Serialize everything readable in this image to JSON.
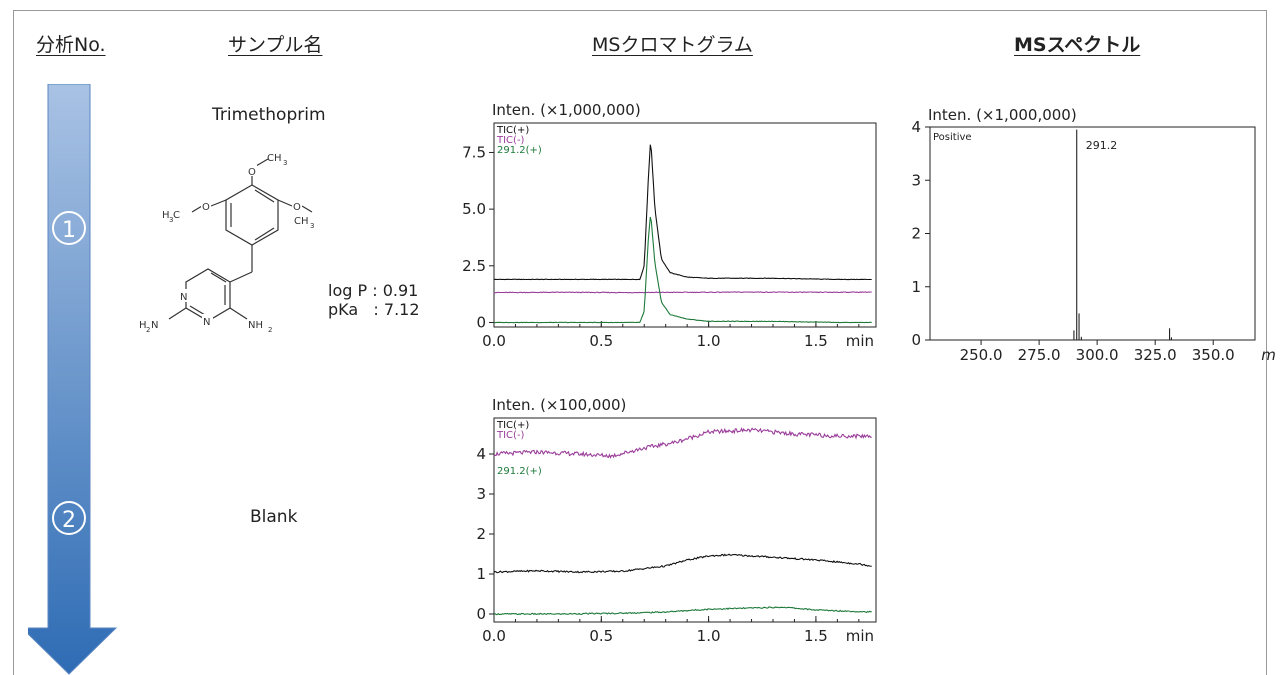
{
  "headers": {
    "analysis_no": "分析No.",
    "sample_name": "サンプル名",
    "ms_chromatogram": "MSクロマトグラム",
    "ms_spectrum": "MSスペクトル"
  },
  "arrow": {
    "steps": [
      "①",
      "②"
    ],
    "color_top": "#9db9df",
    "color_bottom": "#2f6db5"
  },
  "samples": [
    {
      "name": "Trimethoprim",
      "log_p": "log P : 0.91",
      "pka": "pKa   : 7.12",
      "structure_labels": {
        "ch3_top": "CH",
        "h3c_left": "H",
        "ch3_right": "CH",
        "o": "O",
        "n": "N",
        "h2n": "H",
        "nh2": "NH",
        "sub2": "2",
        "sub3": "3"
      }
    },
    {
      "name": "Blank"
    }
  ],
  "colors": {
    "tic_pos": "#111111",
    "tic_neg": "#9a3d9a",
    "sim_291": "#1e7a3a"
  },
  "chart_data": [
    {
      "type": "line",
      "title": "Inten. (×1,000,000)",
      "xlabel": "min",
      "xlim": [
        0.0,
        1.78
      ],
      "ylim": [
        -0.2,
        8.8
      ],
      "x_ticks": [
        "0.0",
        "0.5",
        "1.0",
        "1.5"
      ],
      "y_ticks": [
        "0",
        "2.5",
        "5.0",
        "7.5"
      ],
      "legend": [
        "TIC(+)",
        "TIC(-)",
        "291.2(+)"
      ],
      "series": [
        {
          "name": "TIC(+)",
          "x": [
            0.0,
            0.68,
            0.7,
            0.72,
            0.73,
            0.75,
            0.78,
            0.82,
            0.9,
            1.0,
            1.3,
            1.6,
            1.76
          ],
          "y": [
            1.9,
            1.9,
            2.5,
            6.5,
            8.1,
            5.0,
            2.8,
            2.2,
            2.0,
            1.95,
            1.95,
            1.9,
            1.9
          ]
        },
        {
          "name": "TIC(-)",
          "x": [
            0.0,
            0.3,
            0.6,
            0.9,
            1.2,
            1.5,
            1.76
          ],
          "y": [
            1.32,
            1.33,
            1.32,
            1.33,
            1.34,
            1.33,
            1.34
          ]
        },
        {
          "name": "291.2(+)",
          "x": [
            0.0,
            0.68,
            0.7,
            0.72,
            0.73,
            0.75,
            0.78,
            0.82,
            0.9,
            1.0,
            1.3,
            1.6,
            1.76
          ],
          "y": [
            0.0,
            0.0,
            0.5,
            3.8,
            4.8,
            2.6,
            0.9,
            0.35,
            0.15,
            0.05,
            0.05,
            0.0,
            0.0
          ]
        }
      ]
    },
    {
      "type": "line",
      "title": "Inten. (×100,000)",
      "xlabel": "min",
      "xlim": [
        0.0,
        1.78
      ],
      "ylim": [
        -0.2,
        4.9
      ],
      "x_ticks": [
        "0.0",
        "0.5",
        "1.0",
        "1.5"
      ],
      "y_ticks": [
        "0",
        "1",
        "2",
        "3",
        "4"
      ],
      "legend": [
        "TIC(+)",
        "TIC(-)",
        "291.2(+)"
      ],
      "series": [
        {
          "name": "TIC(+)",
          "x": [
            0.0,
            0.2,
            0.4,
            0.6,
            0.8,
            0.9,
            1.0,
            1.1,
            1.3,
            1.5,
            1.7,
            1.76
          ],
          "y": [
            1.05,
            1.08,
            1.05,
            1.07,
            1.2,
            1.35,
            1.45,
            1.48,
            1.42,
            1.35,
            1.25,
            1.2
          ]
        },
        {
          "name": "TIC(-)",
          "x": [
            0.0,
            0.2,
            0.4,
            0.55,
            0.7,
            0.85,
            1.0,
            1.2,
            1.4,
            1.6,
            1.76
          ],
          "y": [
            4.0,
            4.05,
            4.0,
            3.95,
            4.15,
            4.3,
            4.55,
            4.6,
            4.5,
            4.45,
            4.45
          ]
        },
        {
          "name": "291.2(+)",
          "x": [
            0.0,
            0.3,
            0.6,
            0.8,
            1.0,
            1.2,
            1.35,
            1.5,
            1.76
          ],
          "y": [
            0.0,
            0.0,
            0.02,
            0.05,
            0.12,
            0.15,
            0.17,
            0.1,
            0.05
          ]
        }
      ]
    },
    {
      "type": "bar",
      "title": "Inten. (×1,000,000)",
      "xlabel": "m/z",
      "xlim": [
        228,
        368
      ],
      "ylim": [
        0,
        4
      ],
      "x_ticks": [
        "250.0",
        "275.0",
        "300.0",
        "325.0",
        "350.0"
      ],
      "y_ticks": [
        "0",
        "1",
        "2",
        "3",
        "4"
      ],
      "annotation": "Positive",
      "peak_label": "291.2",
      "peaks": [
        {
          "mz": 290.0,
          "intensity": 0.18
        },
        {
          "mz": 291.2,
          "intensity": 3.95
        },
        {
          "mz": 292.2,
          "intensity": 0.5
        },
        {
          "mz": 293.2,
          "intensity": 0.06
        },
        {
          "mz": 331.2,
          "intensity": 0.22
        },
        {
          "mz": 332.0,
          "intensity": 0.05
        }
      ]
    }
  ]
}
